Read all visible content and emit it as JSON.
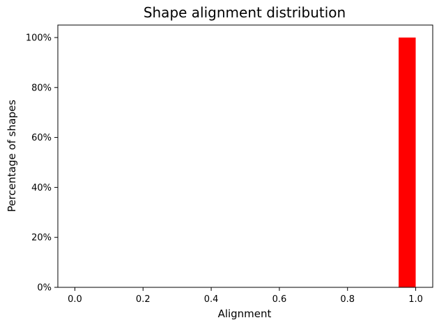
{
  "chart_data": {
    "type": "bar",
    "title": "Shape alignment distribution",
    "xlabel": "Alignment",
    "ylabel": "Percentage of shapes",
    "xlim": [
      -0.05,
      1.05
    ],
    "ylim": [
      0,
      105
    ],
    "x_ticks": [
      0.0,
      0.2,
      0.4,
      0.6,
      0.8,
      1.0
    ],
    "x_tick_labels": [
      "0.0",
      "0.2",
      "0.4",
      "0.6",
      "0.8",
      "1.0"
    ],
    "y_ticks": [
      0,
      20,
      40,
      60,
      80,
      100
    ],
    "y_tick_labels": [
      "0%",
      "20%",
      "40%",
      "60%",
      "80%",
      "100%"
    ],
    "bins": [
      {
        "start": 0.95,
        "end": 1.0,
        "value": 100
      }
    ],
    "bar_color": "#ff0000",
    "grid": false,
    "legend": "none"
  }
}
